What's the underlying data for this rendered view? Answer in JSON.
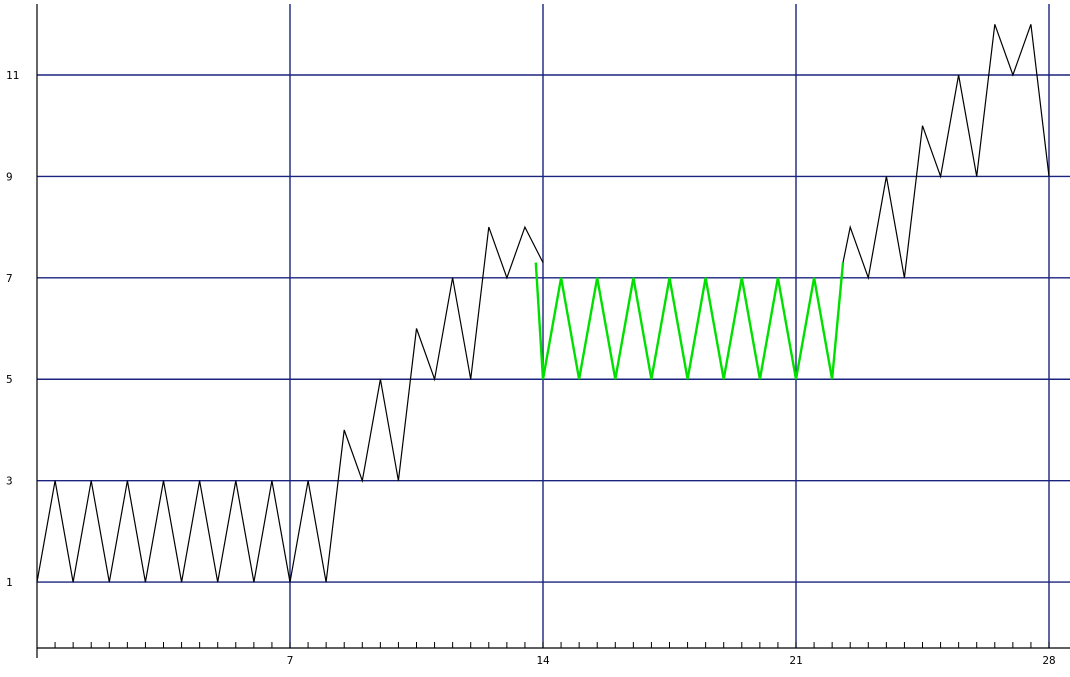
{
  "chart_data": {
    "type": "line",
    "title": "",
    "xlabel": "",
    "ylabel": "",
    "xlim": [
      0,
      28
    ],
    "ylim": [
      -0.3,
      12.4
    ],
    "x_ticks": [
      7,
      14,
      21,
      28
    ],
    "x_tick_labels": [
      "7",
      "14",
      "21",
      "28"
    ],
    "y_ticks": [
      1,
      3,
      5,
      7,
      9,
      11
    ],
    "y_tick_labels": [
      "1",
      "3",
      "5",
      "7",
      "9",
      "11"
    ],
    "h_gridlines": [
      1,
      3,
      5,
      7,
      9,
      11
    ],
    "v_gridlines": [
      7,
      14,
      21,
      28
    ],
    "minor_x_ticks_step": 0.5,
    "grid": true,
    "colors": {
      "grid": "#1a237e",
      "axis": "#000000",
      "normal_series": "#000000",
      "highlight_series": "#00e000"
    },
    "series": [
      {
        "style": "normal",
        "x": [
          0,
          0.5,
          1,
          1.5,
          2,
          2.5,
          3,
          3.5,
          4,
          4.5,
          5,
          5.5,
          6,
          6.5,
          7,
          7.5,
          8,
          8.5,
          9,
          9.5,
          10,
          10.5,
          11,
          11.5,
          12,
          12.5,
          13,
          13.5,
          14
        ],
        "y": [
          1,
          3,
          1,
          3,
          1,
          3,
          1,
          3,
          1,
          3,
          1,
          3,
          1,
          3,
          1,
          3,
          1,
          4,
          3,
          5,
          3,
          6,
          5,
          7,
          5,
          8,
          7,
          8,
          7.3
        ]
      },
      {
        "style": "highlight",
        "x": [
          13.8,
          14,
          14.5,
          15,
          15.5,
          16,
          16.5,
          17,
          17.5,
          18,
          18.5,
          19,
          19.5,
          20,
          20.5,
          21,
          21.5,
          22,
          22.3
        ],
        "y": [
          7.3,
          5,
          7,
          5,
          7,
          5,
          7,
          5,
          7,
          5,
          7,
          5,
          7,
          5,
          7,
          5,
          7,
          5,
          7.3
        ]
      },
      {
        "style": "normal",
        "x": [
          22.3,
          22.5,
          23,
          23.5,
          24,
          24.5,
          25,
          25.5,
          26,
          26.5,
          27,
          27.5,
          28
        ],
        "y": [
          7.3,
          8,
          7,
          9,
          7,
          10,
          9,
          11,
          9,
          12,
          11,
          12,
          9
        ]
      }
    ]
  }
}
